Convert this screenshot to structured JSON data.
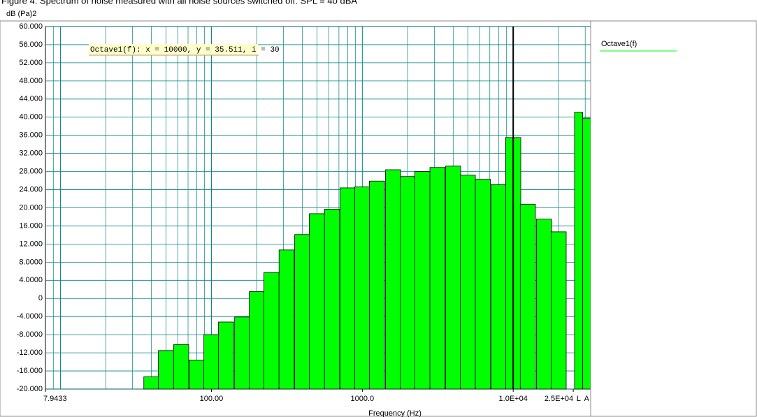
{
  "chart_data": {
    "type": "bar",
    "title": "Figure 4: Spectrum of noise measured with all noise sources switched off. SPL = 40 dBA",
    "y_label": "dB (Pa)2",
    "x_label": "Frequency (Hz)",
    "annotation": "Octave1(f): x = 10000, y = 35.511, i = 30",
    "cursor_x": 10000,
    "x_scale": "log",
    "grid": true,
    "legend": "right",
    "xlim": [
      7.9433,
      32600
    ],
    "ylim": [
      -20,
      60
    ],
    "xticks": [
      {
        "value": 7.9433,
        "label": "7.9433"
      },
      {
        "value": 100,
        "label": "100.00"
      },
      {
        "value": 1000,
        "label": "1000.0"
      },
      {
        "value": 10000,
        "label": "1.0E+04"
      },
      {
        "value": 25000,
        "label": "2.5E+04"
      }
    ],
    "yticks": [
      {
        "value": 60,
        "label": "60.000"
      },
      {
        "value": 56,
        "label": "56.000"
      },
      {
        "value": 52,
        "label": "52.000"
      },
      {
        "value": 48,
        "label": "48.000"
      },
      {
        "value": 44,
        "label": "44.000"
      },
      {
        "value": 40,
        "label": "40.000"
      },
      {
        "value": 36,
        "label": "36.000"
      },
      {
        "value": 32,
        "label": "32.000"
      },
      {
        "value": 28,
        "label": "28.000"
      },
      {
        "value": 24,
        "label": "24.000"
      },
      {
        "value": 20,
        "label": "20.000"
      },
      {
        "value": 16,
        "label": "16.000"
      },
      {
        "value": 12,
        "label": "12.000"
      },
      {
        "value": 8,
        "label": "8.0000"
      },
      {
        "value": 4,
        "label": "4.0000"
      },
      0,
      {
        "value": -4,
        "label": "-4.0000"
      },
      {
        "value": -8,
        "label": "-8.0000"
      },
      {
        "value": -12,
        "label": "-12.000"
      },
      {
        "value": -16,
        "label": "-16.000"
      },
      {
        "value": -20,
        "label": "-20.000"
      }
    ],
    "x": [
      40,
      50,
      63,
      80,
      100,
      125,
      160,
      200,
      250,
      315,
      400,
      500,
      630,
      800,
      1000,
      1250,
      1600,
      2000,
      2500,
      3150,
      4000,
      5000,
      6300,
      8000,
      10000,
      12500,
      16000,
      20000
    ],
    "series": [
      {
        "name": "Octave1(f)",
        "color": "#00ff00",
        "values": [
          -17.3,
          -11.5,
          -10.2,
          -13.6,
          -8.0,
          -5.2,
          -4.1,
          1.5,
          5.7,
          10.7,
          14.1,
          18.7,
          19.7,
          24.4,
          24.6,
          25.9,
          28.4,
          26.9,
          28.0,
          28.9,
          29.2,
          27.2,
          26.3,
          25.1,
          35.511,
          20.8,
          17.5,
          14.7
        ]
      }
    ],
    "overall": {
      "categories": [
        "L",
        "A"
      ],
      "values": [
        41.1,
        39.8
      ]
    }
  }
}
